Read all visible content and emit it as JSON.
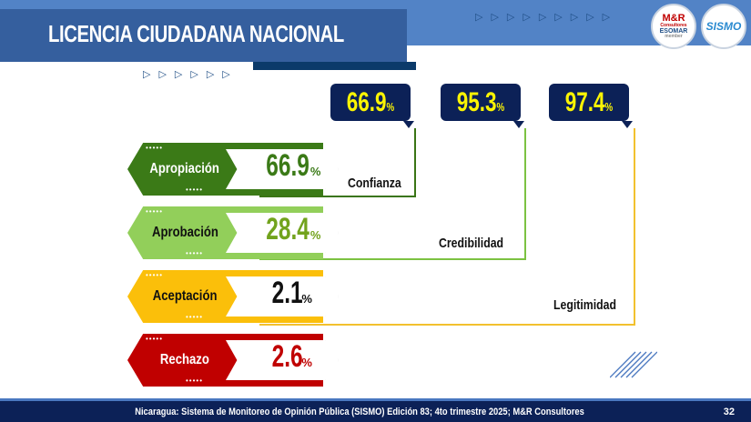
{
  "header": {
    "title": "LICENCIA CIUDADANA NACIONAL",
    "logos": [
      {
        "name": "mr-consultores-logo",
        "lines": [
          "M&R",
          "Consultores",
          "ESOMAR",
          "member"
        ]
      },
      {
        "name": "sismo-logo",
        "text": "SISMO"
      }
    ]
  },
  "bubbles": [
    {
      "value": "66.9",
      "unit": "%",
      "color": "#3a7515"
    },
    {
      "value": "95.3",
      "unit": "%",
      "color": "#7cc242"
    },
    {
      "value": "97.4",
      "unit": "%",
      "color": "#f2c12e"
    }
  ],
  "categories": [
    "Confianza",
    "Credibilidad",
    "Legitimidad"
  ],
  "rows": [
    {
      "label": "Apropiación",
      "value": "66.9",
      "unit": "%",
      "color": "#3b7a17",
      "text_color": "#ffffff",
      "value_color": "#3b7a17"
    },
    {
      "label": "Aprobación",
      "value": "28.4",
      "unit": "%",
      "color": "#92cf5a",
      "text_color": "#111111",
      "value_color": "#72a31d"
    },
    {
      "label": "Aceptación",
      "value": "2.1",
      "unit": "%",
      "color": "#fbbf0a",
      "text_color": "#111111",
      "value_color": "#111111"
    },
    {
      "label": "Rechazo",
      "value": "2.6",
      "unit": "%",
      "color": "#c00000",
      "text_color": "#ffffff",
      "value_color": "#c00000"
    }
  ],
  "footer": {
    "source": "Nicaragua: Sistema de Monitoreo de Opinión Pública (SISMO) Edición 83; 4to trimestre 2025; M&R Consultores",
    "page": "32"
  }
}
